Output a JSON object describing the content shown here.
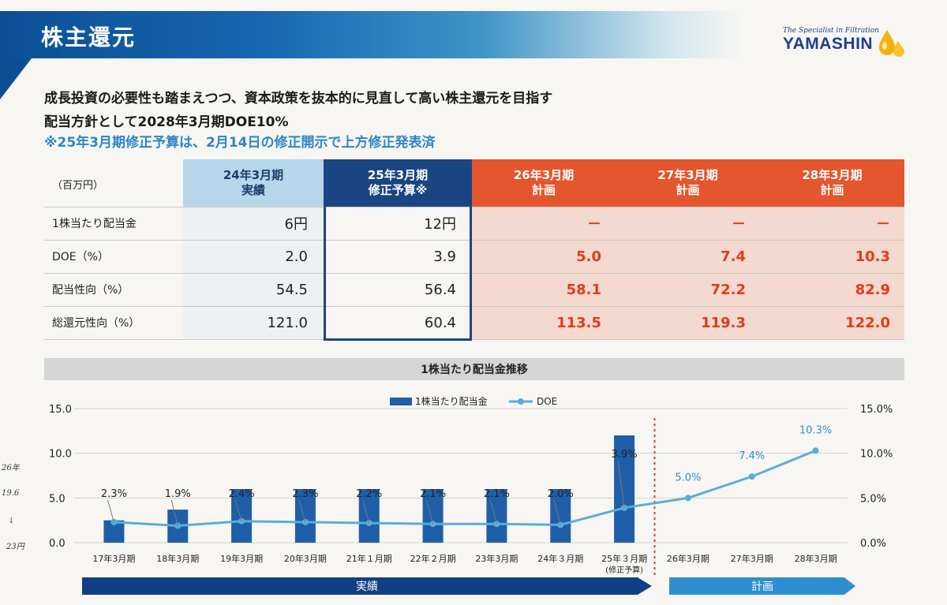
{
  "header": {
    "title": "株主還元",
    "logo_tagline": "The Specialist in Filtration",
    "logo_word": "YAMASHIN"
  },
  "lead": {
    "line1": "成長投資の必要性も踏まえつつ、資本政策を抜本的に見直して高い株主還元を目指す",
    "line2": "配当方針として2028年3月期DOE10%",
    "line3": "※25年3月期修正予算は、2月14日の修正開示で上方修正発表済"
  },
  "table": {
    "unit": "（百万円）",
    "columns": [
      {
        "line1": "24年3月期",
        "line2": "実績"
      },
      {
        "line1": "25年3月期",
        "line2": "修正予算※"
      },
      {
        "line1": "26年3月期",
        "line2": "計画"
      },
      {
        "line1": "27年3月期",
        "line2": "計画"
      },
      {
        "line1": "28年3月期",
        "line2": "計画"
      }
    ],
    "rows": [
      {
        "label": "1株当たり配当金",
        "values": [
          "6円",
          "12円",
          "－",
          "－",
          "－"
        ]
      },
      {
        "label": "DOE（%）",
        "values": [
          "2.0",
          "3.9",
          "5.0",
          "7.4",
          "10.3"
        ]
      },
      {
        "label": "配当性向（%）",
        "values": [
          "54.5",
          "56.4",
          "58.1",
          "72.2",
          "82.9"
        ]
      },
      {
        "label": "総還元性向（%）",
        "values": [
          "121.0",
          "60.4",
          "113.5",
          "119.3",
          "122.0"
        ]
      }
    ]
  },
  "chart_data": {
    "type": "bar",
    "title": "1株当たり配当金推移",
    "categories": [
      "17年3月期",
      "18年3月期",
      "19年3月期",
      "20年3月期",
      "21年１月期",
      "22年２月期",
      "23年3月期",
      "24年３月期",
      "25年３月期",
      "26年3月期",
      "27年3月期",
      "28年3月期"
    ],
    "category_sub": [
      "",
      "",
      "",
      "",
      "",
      "",
      "",
      "",
      "(修正予算)",
      "",
      "",
      ""
    ],
    "series": [
      {
        "name": "1株当たり配当金",
        "type": "bar",
        "axis": "left",
        "values": [
          2.5,
          3.7,
          6.0,
          6.0,
          6.0,
          6.0,
          6.0,
          6.0,
          12.0,
          null,
          null,
          null
        ]
      },
      {
        "name": "DOE",
        "type": "line",
        "axis": "right",
        "values": [
          2.3,
          1.9,
          2.4,
          2.3,
          2.2,
          2.1,
          2.1,
          2.0,
          3.9,
          5.0,
          7.4,
          10.3
        ]
      }
    ],
    "doe_labels": [
      "2.3%",
      "1.9%",
      "2.4%",
      "2.3%",
      "2.2%",
      "2.1%",
      "2.1%",
      "2.0%",
      "3.9%",
      "5.0%",
      "7.4%",
      "10.3%"
    ],
    "left_ticks": [
      "0.0",
      "5.0",
      "10.0",
      "15.0"
    ],
    "right_ticks": [
      "0.0%",
      "5.0%",
      "10.0%",
      "15.0%"
    ],
    "ylim_left": [
      0,
      15
    ],
    "ylim_right": [
      0,
      15
    ],
    "legend_position": "top-center",
    "colors": {
      "bar": "#1f5ea8",
      "line": "#5aaed6",
      "plan_label": "#2e8fd0",
      "divider": "#e23b1b"
    }
  },
  "phases": {
    "actual": "実績",
    "plan": "計画"
  },
  "notes": [
    "26年",
    "19.6",
    "↓",
    "23円"
  ]
}
